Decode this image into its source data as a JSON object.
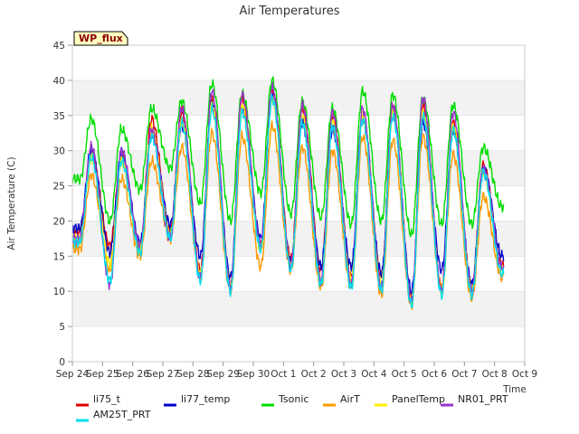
{
  "chart_data": {
    "type": "line",
    "title": "Air Temperatures",
    "xlabel": "Time",
    "ylabel": "Air Temperature (C)",
    "ylim": [
      0,
      45
    ],
    "yticks": [
      0,
      5,
      10,
      15,
      20,
      25,
      30,
      35,
      40,
      45
    ],
    "xlim": [
      "2024-09-24",
      "2024-10-09"
    ],
    "xticks": [
      "Sep 24",
      "Sep 25",
      "Sep 26",
      "Sep 27",
      "Sep 28",
      "Sep 29",
      "Sep 30",
      "Oct 1",
      "Oct 2",
      "Oct 3",
      "Oct 4",
      "Oct 5",
      "Oct 6",
      "Oct 7",
      "Oct 8",
      "Oct 9"
    ],
    "grid": "horizontal bands",
    "legend_position": "bottom",
    "badge": "WP_flux",
    "series": [
      {
        "name": "li75_t",
        "color": "#dd0000",
        "min": [
          18.5,
          16.5,
          16.0,
          18.5,
          13.0,
          11.0,
          16.5,
          14.5,
          13.0,
          12.0,
          12.0,
          9.0,
          10.5,
          10.5,
          13.5
        ],
        "max": [
          29.5,
          29.0,
          34.5,
          35.5,
          37.0,
          37.5,
          38.5,
          36.0,
          35.0,
          34.5,
          36.0,
          36.5,
          34.0,
          28.0
        ]
      },
      {
        "name": "li77_temp",
        "color": "#0000cc",
        "min": [
          19.0,
          15.5,
          17.0,
          19.5,
          15.0,
          12.0,
          17.5,
          14.0,
          13.5,
          13.5,
          12.5,
          10.0,
          13.0,
          11.0,
          15.0
        ],
        "max": [
          30.0,
          29.5,
          32.5,
          33.5,
          36.5,
          36.0,
          38.0,
          34.0,
          33.0,
          35.0,
          35.5,
          34.0,
          33.0,
          27.5
        ]
      },
      {
        "name": "Tsonic",
        "color": "#00dd00",
        "min": [
          26.0,
          20.0,
          24.5,
          27.5,
          22.5,
          20.0,
          24.0,
          21.0,
          20.5,
          19.5,
          20.0,
          18.0,
          19.5,
          19.5,
          22.0
        ],
        "max": [
          34.5,
          33.0,
          36.0,
          37.0,
          39.5,
          38.0,
          40.0,
          37.0,
          36.0,
          38.5,
          38.0,
          37.5,
          36.5,
          30.5
        ]
      },
      {
        "name": "AirT",
        "color": "#ff9900",
        "min": [
          16.0,
          13.0,
          15.0,
          17.5,
          12.0,
          10.0,
          13.5,
          13.0,
          10.5,
          10.5,
          9.5,
          8.0,
          10.0,
          9.0,
          12.0
        ],
        "max": [
          26.5,
          26.0,
          28.5,
          30.5,
          32.5,
          32.0,
          33.5,
          30.5,
          30.0,
          32.0,
          31.5,
          32.0,
          29.5,
          23.5
        ]
      },
      {
        "name": "PanelTemp",
        "color": "#ffee00",
        "min": [
          17.5,
          14.0,
          16.0,
          18.0,
          12.5,
          10.5,
          16.0,
          13.5,
          11.5,
          11.5,
          11.0,
          8.5,
          10.0,
          10.0,
          13.0
        ],
        "max": [
          29.0,
          28.5,
          33.0,
          34.0,
          36.5,
          36.5,
          37.5,
          35.0,
          34.0,
          35.0,
          35.5,
          35.5,
          33.5,
          27.0
        ]
      },
      {
        "name": "NR01_PRT",
        "color": "#9933cc",
        "min": [
          17.5,
          11.0,
          16.5,
          17.5,
          12.0,
          10.5,
          16.5,
          13.5,
          11.5,
          11.0,
          10.5,
          8.5,
          10.0,
          10.0,
          13.5
        ],
        "max": [
          30.5,
          30.0,
          33.0,
          36.0,
          38.5,
          38.0,
          39.0,
          36.5,
          35.5,
          36.0,
          36.5,
          37.5,
          35.5,
          27.5
        ]
      },
      {
        "name": "AM25T_PRT",
        "color": "#00ddee",
        "min": [
          17.0,
          11.5,
          15.5,
          17.5,
          11.5,
          10.0,
          16.0,
          13.0,
          11.0,
          10.5,
          10.0,
          8.0,
          9.5,
          9.5,
          12.5
        ],
        "max": [
          29.0,
          28.5,
          32.0,
          34.0,
          36.0,
          35.5,
          37.5,
          34.0,
          33.5,
          34.5,
          35.0,
          35.0,
          33.0,
          27.0
        ]
      }
    ]
  }
}
